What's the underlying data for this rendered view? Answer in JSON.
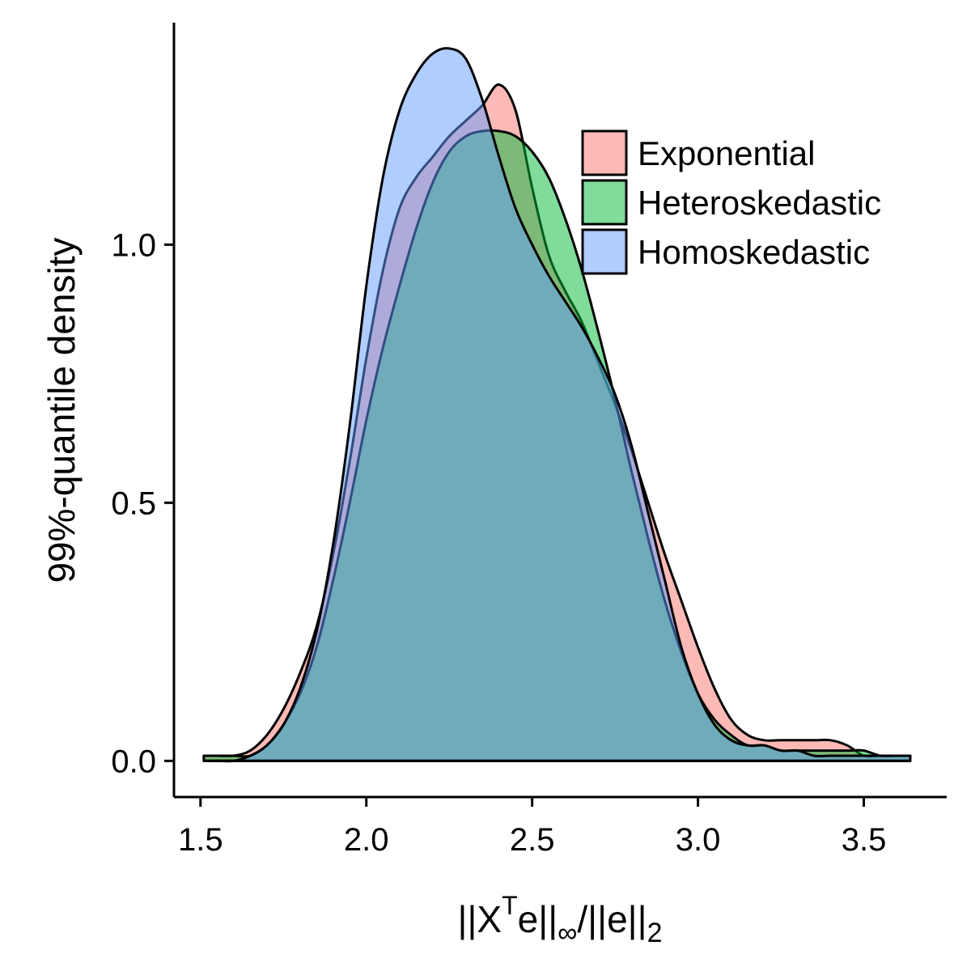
{
  "chart_data": {
    "type": "area",
    "title": "",
    "xlabel": "||X^T e||∞/||e||2",
    "ylabel": "99%-quantile density",
    "xlim": [
      1.42,
      3.75
    ],
    "ylim": [
      -0.07,
      1.43
    ],
    "xticks": [
      1.5,
      2.0,
      2.5,
      3.0,
      3.5
    ],
    "xtick_labels": [
      "1.5",
      "2.0",
      "2.5",
      "3.0",
      "3.5"
    ],
    "yticks": [
      0.0,
      0.5,
      1.0
    ],
    "ytick_labels": [
      "0.0",
      "0.5",
      "1.0"
    ],
    "grid": false,
    "legend_position": "top-right",
    "x": [
      1.51,
      1.55,
      1.6,
      1.65,
      1.7,
      1.75,
      1.8,
      1.85,
      1.9,
      1.95,
      2.0,
      2.05,
      2.1,
      2.15,
      2.2,
      2.25,
      2.3,
      2.35,
      2.4,
      2.45,
      2.5,
      2.55,
      2.6,
      2.65,
      2.7,
      2.75,
      2.8,
      2.85,
      2.9,
      2.95,
      3.0,
      3.05,
      3.1,
      3.15,
      3.2,
      3.25,
      3.3,
      3.35,
      3.4,
      3.45,
      3.5,
      3.55,
      3.6,
      3.64
    ],
    "series": [
      {
        "name": "Exponential",
        "color": "#F8766D",
        "values": [
          0.01,
          0.01,
          0.01,
          0.02,
          0.05,
          0.1,
          0.17,
          0.26,
          0.4,
          0.58,
          0.78,
          0.95,
          1.07,
          1.13,
          1.17,
          1.21,
          1.24,
          1.27,
          1.31,
          1.26,
          1.11,
          0.98,
          0.91,
          0.85,
          0.77,
          0.69,
          0.6,
          0.5,
          0.4,
          0.31,
          0.22,
          0.14,
          0.08,
          0.05,
          0.04,
          0.04,
          0.04,
          0.04,
          0.04,
          0.03,
          0.01,
          0.01,
          0.01,
          0.01
        ]
      },
      {
        "name": "Heteroskedastic",
        "color": "#00BA38",
        "values": [
          0.01,
          0.01,
          0.01,
          0.01,
          0.03,
          0.07,
          0.13,
          0.22,
          0.35,
          0.5,
          0.66,
          0.8,
          0.92,
          1.03,
          1.12,
          1.18,
          1.21,
          1.22,
          1.22,
          1.21,
          1.18,
          1.13,
          1.05,
          0.95,
          0.83,
          0.7,
          0.56,
          0.43,
          0.31,
          0.21,
          0.13,
          0.08,
          0.05,
          0.03,
          0.03,
          0.02,
          0.02,
          0.02,
          0.02,
          0.02,
          0.02,
          0.01,
          0.01,
          0.01
        ]
      },
      {
        "name": "Homoskedastic",
        "color": "#619CFF",
        "values": [
          0.0,
          0.0,
          0.0,
          0.01,
          0.03,
          0.07,
          0.14,
          0.25,
          0.42,
          0.65,
          0.92,
          1.13,
          1.26,
          1.33,
          1.37,
          1.38,
          1.36,
          1.28,
          1.17,
          1.07,
          1.0,
          0.94,
          0.89,
          0.84,
          0.78,
          0.71,
          0.61,
          0.48,
          0.35,
          0.22,
          0.13,
          0.07,
          0.04,
          0.03,
          0.03,
          0.02,
          0.02,
          0.01,
          0.01,
          0.01,
          0.01,
          0.01,
          0.01,
          0.01
        ]
      }
    ]
  }
}
